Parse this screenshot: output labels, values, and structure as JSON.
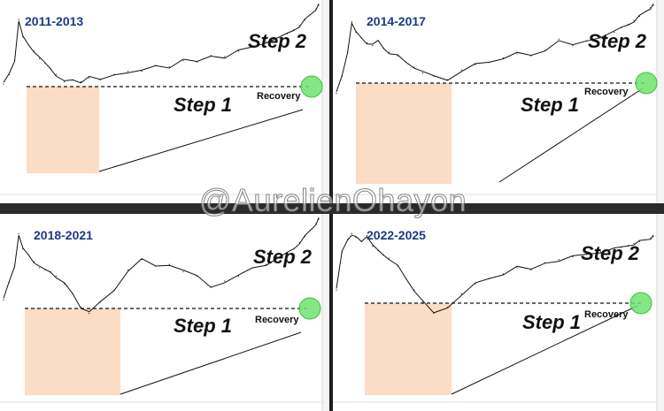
{
  "watermark": "@AurelienOhayon",
  "colors": {
    "title": "#1b3a8a",
    "highlight_box": "#fbdcc4",
    "recovery_circle": "#6fe36f",
    "price_line": "#111111"
  },
  "panels": [
    {
      "title": "2011-2013",
      "step1": "Step 1",
      "step2": "Step 2",
      "recovery": "Recovery"
    },
    {
      "title": "2014-2017",
      "step1": "Step 1",
      "step2": "Step 2",
      "recovery": "Recovery"
    },
    {
      "title": "2018-2021",
      "step1": "Step 1",
      "step2": "Step 2",
      "recovery": "Recovery"
    },
    {
      "title": "2022-2025",
      "step1": "Step 1",
      "step2": "Step 2",
      "recovery": "Recovery"
    }
  ],
  "chart_data": [
    {
      "type": "line",
      "title": "2011-2013",
      "x": [
        0,
        4,
        8,
        11,
        14,
        18,
        22,
        26,
        30,
        34,
        38,
        44,
        50,
        56,
        62,
        70,
        80,
        90,
        100,
        110,
        120,
        130,
        140,
        150,
        160,
        170,
        180,
        190,
        200,
        205,
        210,
        214,
        218,
        222,
        226,
        228
      ],
      "y": [
        15,
        20,
        30,
        100,
        60,
        48,
        40,
        32,
        28,
        24,
        20,
        16,
        17,
        16,
        18,
        17,
        20,
        22,
        22,
        26,
        25,
        30,
        29,
        35,
        34,
        40,
        45,
        52,
        58,
        66,
        74,
        84,
        98,
        115,
        135,
        150
      ],
      "annotations": [
        "Step 1",
        "Step 2",
        "Recovery"
      ]
    },
    {
      "type": "line",
      "title": "2014-2017",
      "x": [
        0,
        4,
        8,
        11,
        14,
        18,
        22,
        26,
        30,
        34,
        38,
        44,
        50,
        56,
        62,
        70,
        80,
        90,
        100,
        110,
        120,
        130,
        140,
        150,
        160,
        170,
        180,
        190,
        200,
        205,
        210,
        214,
        218,
        222,
        226,
        228
      ],
      "y": [
        12,
        20,
        40,
        95,
        70,
        60,
        52,
        48,
        55,
        45,
        40,
        36,
        30,
        26,
        22,
        20,
        18,
        24,
        28,
        30,
        34,
        38,
        36,
        42,
        58,
        48,
        55,
        62,
        70,
        80,
        88,
        98,
        110,
        125,
        140,
        150
      ],
      "annotations": [
        "Step 1",
        "Step 2",
        "Recovery"
      ]
    },
    {
      "type": "line",
      "title": "2018-2021",
      "x": [
        0,
        4,
        8,
        11,
        14,
        18,
        22,
        26,
        30,
        34,
        38,
        44,
        50,
        56,
        62,
        70,
        80,
        90,
        100,
        110,
        120,
        130,
        140,
        150,
        160,
        170,
        180,
        190,
        200,
        205,
        210,
        214,
        218,
        222,
        226,
        228
      ],
      "y": [
        15,
        25,
        40,
        100,
        65,
        55,
        45,
        38,
        36,
        34,
        30,
        24,
        18,
        12,
        10,
        14,
        20,
        36,
        48,
        40,
        42,
        34,
        30,
        22,
        26,
        30,
        38,
        42,
        50,
        58,
        66,
        78,
        92,
        110,
        132,
        150
      ],
      "annotations": [
        "Step 1",
        "Step 2",
        "Recovery"
      ]
    },
    {
      "type": "line",
      "title": "2022-2025",
      "x": [
        0,
        4,
        8,
        11,
        14,
        18,
        22,
        26,
        30,
        34,
        38,
        44,
        50,
        56,
        62,
        70,
        80,
        90,
        100,
        110,
        120,
        130,
        140,
        150,
        160,
        170,
        180,
        190,
        200,
        205,
        210,
        214,
        218,
        222,
        226,
        228
      ],
      "y": [
        20,
        60,
        85,
        100,
        90,
        80,
        95,
        70,
        62,
        55,
        50,
        40,
        28,
        20,
        14,
        10,
        12,
        18,
        24,
        28,
        32,
        38,
        36,
        44,
        48,
        52,
        56,
        60,
        64,
        68,
        72,
        76,
        80,
        84,
        88,
        92
      ],
      "annotations": [
        "Step 1",
        "Step 2",
        "Recovery"
      ]
    }
  ]
}
